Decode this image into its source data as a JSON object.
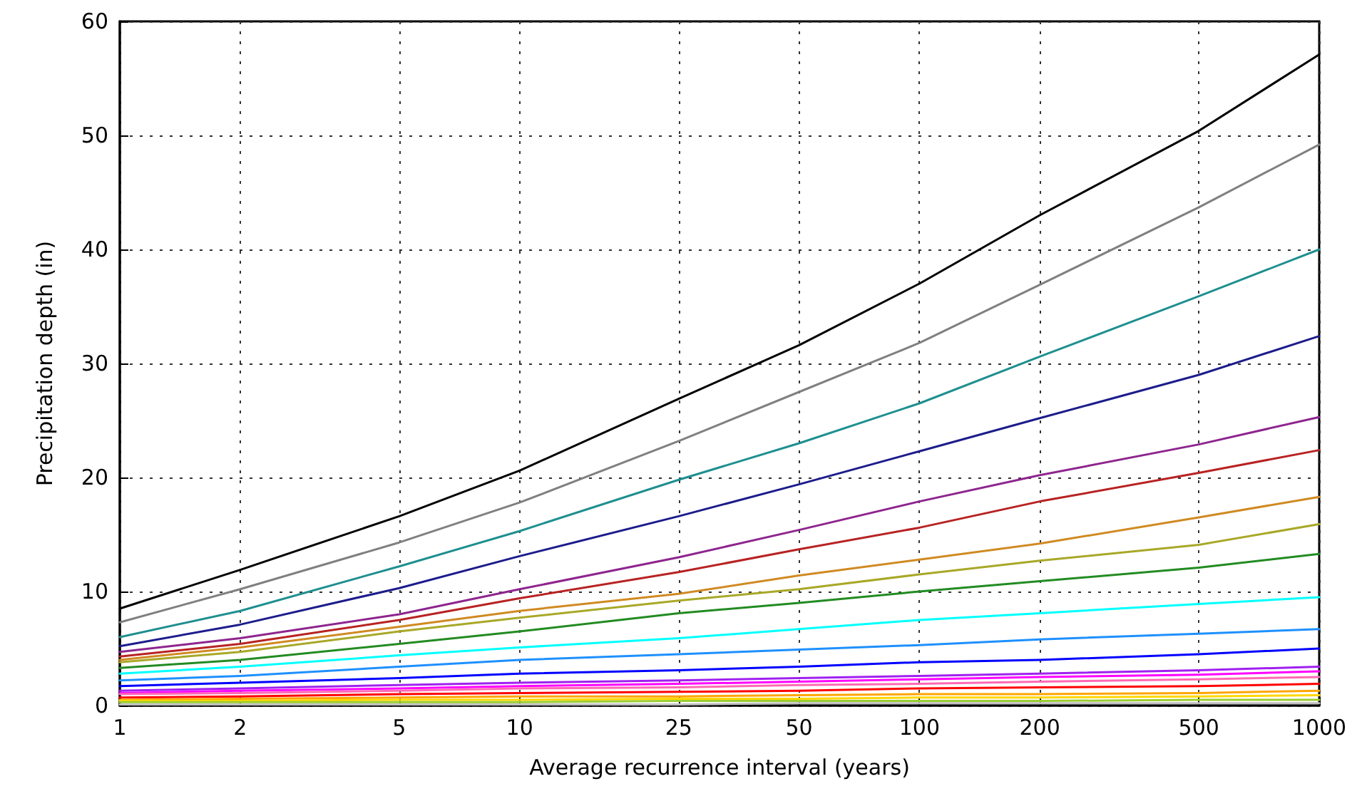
{
  "chart_data": {
    "type": "line",
    "xlabel": "Average recurrence interval (years)",
    "ylabel": "Precipitation depth (in)",
    "x": [
      1,
      2,
      5,
      10,
      25,
      50,
      100,
      200,
      500,
      1000
    ],
    "log": "x",
    "xlim": [
      1,
      1000
    ],
    "xticks": [
      1,
      2,
      5,
      10,
      25,
      50,
      100,
      200,
      500,
      1000
    ],
    "ylim": [
      0,
      60
    ],
    "yticks": [
      0,
      10,
      20,
      30,
      40,
      50,
      60
    ],
    "grid": true,
    "marker": "none",
    "line_style": "solid",
    "series": [
      {
        "color": "#000000",
        "values": [
          8.5,
          11.9,
          16.6,
          20.6,
          26.9,
          31.6,
          37,
          43,
          50.4,
          57.1
        ]
      },
      {
        "color": "#808080",
        "values": [
          7.3,
          10.2,
          14.3,
          17.8,
          23.2,
          27.5,
          31.8,
          36.9,
          43.7,
          49.2
        ]
      },
      {
        "color": "#1f8f8f",
        "values": [
          6.0,
          8.3,
          12.2,
          15.3,
          19.8,
          23.0,
          26.5,
          30.6,
          35.9,
          40.0
        ]
      },
      {
        "color": "#1c1c8c",
        "values": [
          5.2,
          7.1,
          10.3,
          13.1,
          16.6,
          19.4,
          22.3,
          25.2,
          29.0,
          32.4
        ]
      },
      {
        "color": "#8e258e",
        "values": [
          4.7,
          5.9,
          8.0,
          10.2,
          13.0,
          15.4,
          17.9,
          20.2,
          22.9,
          25.3
        ]
      },
      {
        "color": "#b82222",
        "values": [
          4.3,
          5.4,
          7.5,
          9.4,
          11.7,
          13.7,
          15.6,
          17.9,
          20.4,
          22.4
        ]
      },
      {
        "color": "#d08a22",
        "values": [
          4.0,
          5.1,
          6.9,
          8.3,
          9.8,
          11.4,
          12.8,
          14.2,
          16.5,
          18.3
        ]
      },
      {
        "color": "#a8a828",
        "values": [
          3.8,
          4.7,
          6.5,
          7.7,
          9.2,
          10.2,
          11.5,
          12.7,
          14.1,
          15.9
        ]
      },
      {
        "color": "#228b22",
        "values": [
          3.3,
          4.0,
          5.4,
          6.5,
          8.1,
          9.0,
          10.0,
          10.9,
          12.1,
          13.3
        ]
      },
      {
        "color": "#00ffff",
        "values": [
          2.8,
          3.4,
          4.4,
          5.1,
          5.9,
          6.7,
          7.5,
          8.1,
          8.9,
          9.5
        ]
      },
      {
        "color": "#1e90ff",
        "values": [
          2.2,
          2.6,
          3.4,
          4.0,
          4.5,
          4.9,
          5.3,
          5.8,
          6.3,
          6.7
        ]
      },
      {
        "color": "#0000ff",
        "values": [
          1.7,
          2.0,
          2.4,
          2.8,
          3.1,
          3.4,
          3.8,
          4.0,
          4.5,
          5.0
        ]
      },
      {
        "color": "#a020f0",
        "values": [
          1.3,
          1.5,
          1.8,
          2.0,
          2.2,
          2.4,
          2.6,
          2.8,
          3.1,
          3.4
        ]
      },
      {
        "color": "#ff00ff",
        "values": [
          1.1,
          1.3,
          1.5,
          1.7,
          1.9,
          2.1,
          2.3,
          2.5,
          2.7,
          3.0
        ]
      },
      {
        "color": "#ff69b4",
        "values": [
          1.0,
          1.1,
          1.3,
          1.5,
          1.6,
          1.8,
          1.9,
          2.1,
          2.3,
          2.5
        ]
      },
      {
        "color": "#ff0000",
        "values": [
          0.7,
          0.8,
          1.0,
          1.1,
          1.2,
          1.3,
          1.5,
          1.6,
          1.7,
          1.9
        ]
      },
      {
        "color": "#ffa500",
        "values": [
          0.5,
          0.6,
          0.7,
          0.8,
          0.8,
          0.9,
          1.0,
          1.0,
          1.1,
          1.3
        ]
      },
      {
        "color": "#ffd700",
        "values": [
          0.4,
          0.4,
          0.5,
          0.5,
          0.6,
          0.6,
          0.7,
          0.7,
          0.8,
          0.9
        ]
      },
      {
        "color": "#9acd32",
        "values": [
          0.3,
          0.3,
          0.3,
          0.3,
          0.4,
          0.4,
          0.4,
          0.4,
          0.5,
          0.5
        ]
      },
      {
        "color": "#c0c0c0",
        "values": [
          0.1,
          0.1,
          0.1,
          0.1,
          0.1,
          0.2,
          0.2,
          0.2,
          0.2,
          0.2
        ]
      }
    ]
  }
}
